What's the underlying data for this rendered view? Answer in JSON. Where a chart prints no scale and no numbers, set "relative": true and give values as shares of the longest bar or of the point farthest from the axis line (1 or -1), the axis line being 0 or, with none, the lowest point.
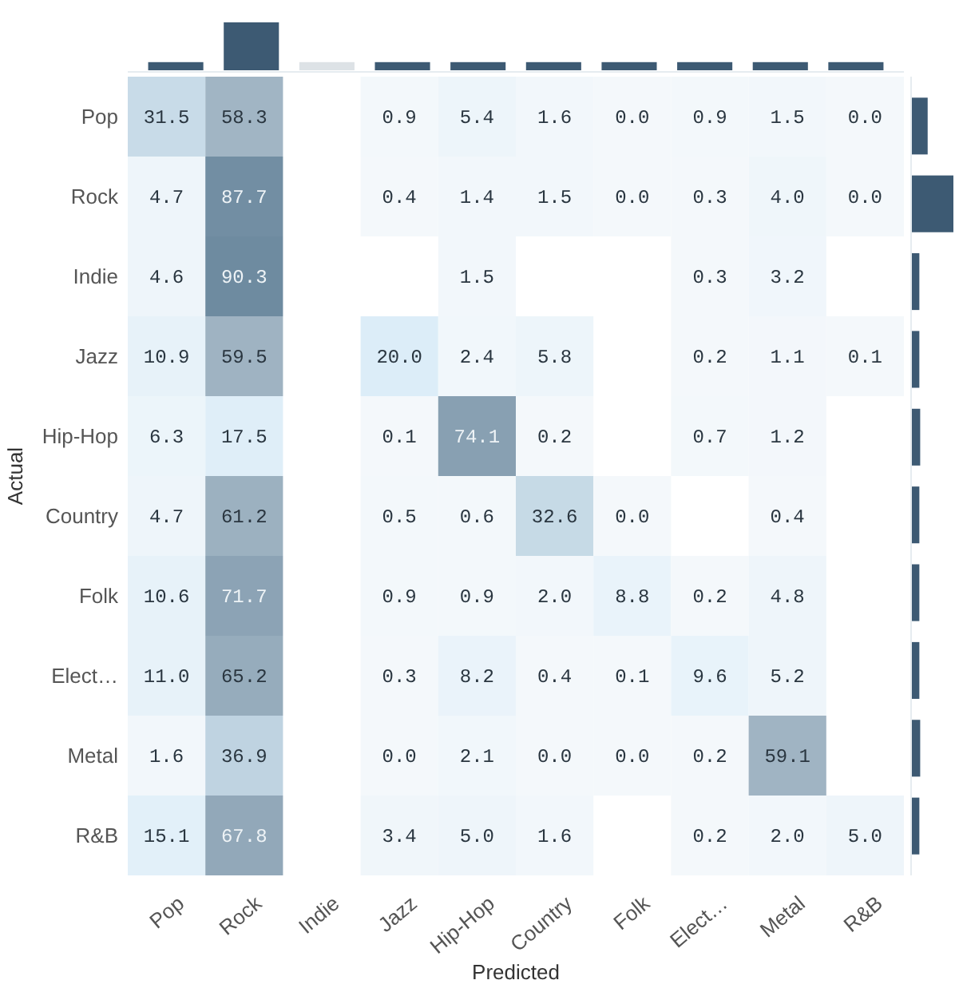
{
  "chart_data": [
    {
      "type": "heatmap",
      "xlabel": "Predicted",
      "ylabel": "Actual",
      "categories": [
        "Pop",
        "Rock",
        "Indie",
        "Jazz",
        "Hip-Hop",
        "Country",
        "Folk",
        "Elect…",
        "Metal",
        "R&B"
      ],
      "y_categories": [
        "Pop",
        "Rock",
        "Indie",
        "Jazz",
        "Hip-Hop",
        "Country",
        "Folk",
        "Elect…",
        "Metal",
        "R&B"
      ],
      "cells": [
        [
          31.5,
          58.3,
          null,
          0.9,
          5.4,
          1.6,
          0.0,
          0.9,
          1.5,
          0.0
        ],
        [
          4.7,
          87.7,
          null,
          0.4,
          1.4,
          1.5,
          0.0,
          0.3,
          4.0,
          0.0
        ],
        [
          4.6,
          90.3,
          null,
          null,
          1.5,
          null,
          null,
          0.3,
          3.2,
          null
        ],
        [
          10.9,
          59.5,
          null,
          20.0,
          2.4,
          5.8,
          null,
          0.2,
          1.1,
          0.1
        ],
        [
          6.3,
          17.5,
          null,
          0.1,
          74.1,
          0.2,
          null,
          0.7,
          1.2,
          null
        ],
        [
          4.7,
          61.2,
          null,
          0.5,
          0.6,
          32.6,
          0.0,
          null,
          0.4,
          null
        ],
        [
          10.6,
          71.7,
          null,
          0.9,
          0.9,
          2.0,
          8.8,
          0.2,
          4.8,
          null
        ],
        [
          11.0,
          65.2,
          null,
          0.3,
          8.2,
          0.4,
          0.1,
          9.6,
          5.2,
          null
        ],
        [
          1.6,
          36.9,
          null,
          0.0,
          2.1,
          0.0,
          0.0,
          0.2,
          59.1,
          null
        ],
        [
          15.1,
          67.8,
          null,
          3.4,
          5.0,
          1.6,
          null,
          0.2,
          2.0,
          5.0
        ]
      ],
      "cell_labels": [
        [
          "31.5",
          "58.3",
          null,
          "0.9",
          "5.4",
          "1.6",
          "0.0",
          "0.9",
          "1.5",
          "0.0"
        ],
        [
          "4.7",
          "87.7",
          null,
          "0.4",
          "1.4",
          "1.5",
          "0.0",
          "0.3",
          "4.0",
          "0.0"
        ],
        [
          "4.6",
          "90.3",
          null,
          null,
          "1.5",
          null,
          null,
          "0.3",
          "3.2",
          null
        ],
        [
          "10.9",
          "59.5",
          null,
          "20.0",
          "2.4",
          "5.8",
          null,
          "0.2",
          "1.1",
          "0.1"
        ],
        [
          "6.3",
          "17.5",
          null,
          "0.1",
          "74.1",
          "0.2",
          null,
          "0.7",
          "1.2",
          null
        ],
        [
          "4.7",
          "61.2",
          null,
          "0.5",
          "0.6",
          "32.6",
          "0.0",
          null,
          "0.4",
          null
        ],
        [
          "10.6",
          "71.7",
          null,
          "0.9",
          "0.9",
          "2.0",
          "8.8",
          "0.2",
          "4.8",
          null
        ],
        [
          "11.0",
          "65.2",
          null,
          "0.3",
          "8.2",
          "0.4",
          "0.1",
          "9.6",
          "5.2",
          null
        ],
        [
          "1.6",
          "36.9",
          null,
          "0.0",
          "2.1",
          "0.0",
          "0.0",
          "0.2",
          "59.1",
          null
        ],
        [
          "15.1",
          "67.8",
          null,
          "3.4",
          "5.0",
          "1.6",
          null,
          "0.2",
          "2.0",
          "5.0"
        ]
      ]
    },
    {
      "type": "bar",
      "relative": true,
      "categories": [
        null,
        null,
        null,
        null,
        null,
        null,
        null,
        null,
        null,
        null
      ],
      "values": [
        0.17,
        1,
        0.17,
        0.17,
        0.17,
        0.17,
        0.17,
        0.17,
        0.17,
        0.17
      ],
      "colors": [
        "#3d5a73",
        "#3d5a73",
        "#dde2e6",
        "#3d5a73",
        "#3d5a73",
        "#3d5a73",
        "#3d5a73",
        "#3d5a73",
        "#3d5a73",
        "#3d5a73"
      ]
    },
    {
      "type": "bar",
      "orientation": "horizontal",
      "relative": true,
      "categories": [
        null,
        null,
        null,
        null,
        null,
        null,
        null,
        null,
        null,
        null
      ],
      "values": [
        0.38,
        1,
        0.18,
        0.18,
        0.2,
        0.18,
        0.18,
        0.18,
        0.2,
        0.18
      ],
      "color": "#3d5a73"
    }
  ]
}
